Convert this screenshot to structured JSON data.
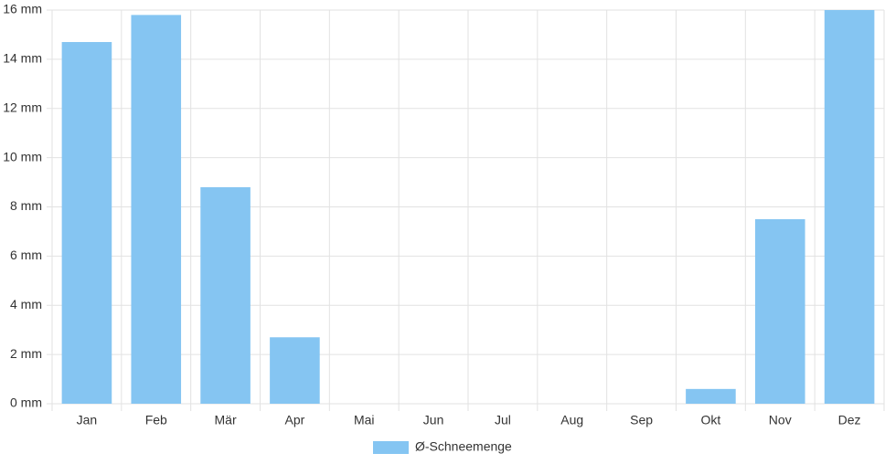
{
  "chart_data": {
    "type": "bar",
    "categories": [
      "Jan",
      "Feb",
      "Mär",
      "Apr",
      "Mai",
      "Jun",
      "Jul",
      "Aug",
      "Sep",
      "Okt",
      "Nov",
      "Dez"
    ],
    "series": [
      {
        "name": "Ø-Schneemenge",
        "color": "#85c5f2",
        "values": [
          14.7,
          15.8,
          8.8,
          2.7,
          0,
          0,
          0,
          0,
          0,
          0.6,
          7.5,
          16
        ]
      }
    ],
    "ylim": [
      0,
      16
    ],
    "yticks": [
      {
        "value": 0,
        "label": "0 mm"
      },
      {
        "value": 2,
        "label": "2 mm"
      },
      {
        "value": 4,
        "label": "4 mm"
      },
      {
        "value": 6,
        "label": "6 mm"
      },
      {
        "value": 8,
        "label": "8 mm"
      },
      {
        "value": 10,
        "label": "10 mm"
      },
      {
        "value": 12,
        "label": "12 mm"
      },
      {
        "value": 14,
        "label": "14 mm"
      },
      {
        "value": 16,
        "label": "16 mm"
      }
    ],
    "grid": true,
    "legend": "bottom"
  }
}
